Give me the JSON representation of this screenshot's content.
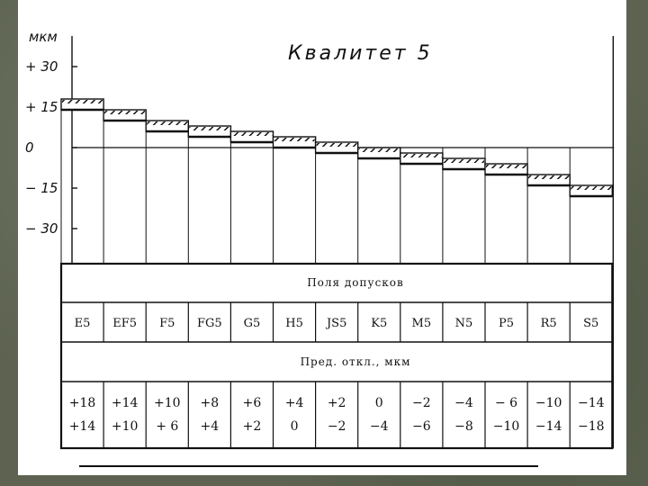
{
  "chart_data": {
    "type": "bar",
    "title": "Квалитет 5",
    "ylabel": "мкм",
    "ylim": [
      -30,
      30
    ],
    "yticks": [
      30,
      15,
      0,
      -15,
      -30
    ],
    "ytick_labels": [
      "+ 30",
      "+ 15",
      "0",
      "− 15",
      "− 30"
    ],
    "categories": [
      "E5",
      "EF5",
      "F5",
      "FG5",
      "G5",
      "H5",
      "JS5",
      "K5",
      "M5",
      "N5",
      "P5",
      "R5",
      "S5"
    ],
    "series": [
      {
        "values_upper": [
          18,
          14,
          10,
          8,
          6,
          4,
          2,
          0,
          -2,
          -4,
          -6,
          -10,
          -14
        ]
      },
      {
        "values_lower": [
          14,
          10,
          6,
          4,
          2,
          0,
          -2,
          -4,
          -6,
          -8,
          -10,
          -14,
          -18
        ]
      }
    ],
    "upper_labels": [
      "+18",
      "+14",
      "+10",
      "+8",
      "+6",
      "+4",
      "+2",
      "0",
      "−2",
      "−4",
      "− 6",
      "−10",
      "−14"
    ],
    "lower_labels": [
      "+14",
      "+10",
      "+ 6",
      "+4",
      "+2",
      "0",
      "−2",
      "−4",
      "−6",
      "−8",
      "−10",
      "−14",
      "−18"
    ]
  },
  "table": {
    "header_fields": "Поля допусков",
    "header_deviations": "Пред. откл., мкм"
  },
  "colors": {
    "hatch": "#111111",
    "line": "#111111",
    "paper": "#ffffff"
  }
}
